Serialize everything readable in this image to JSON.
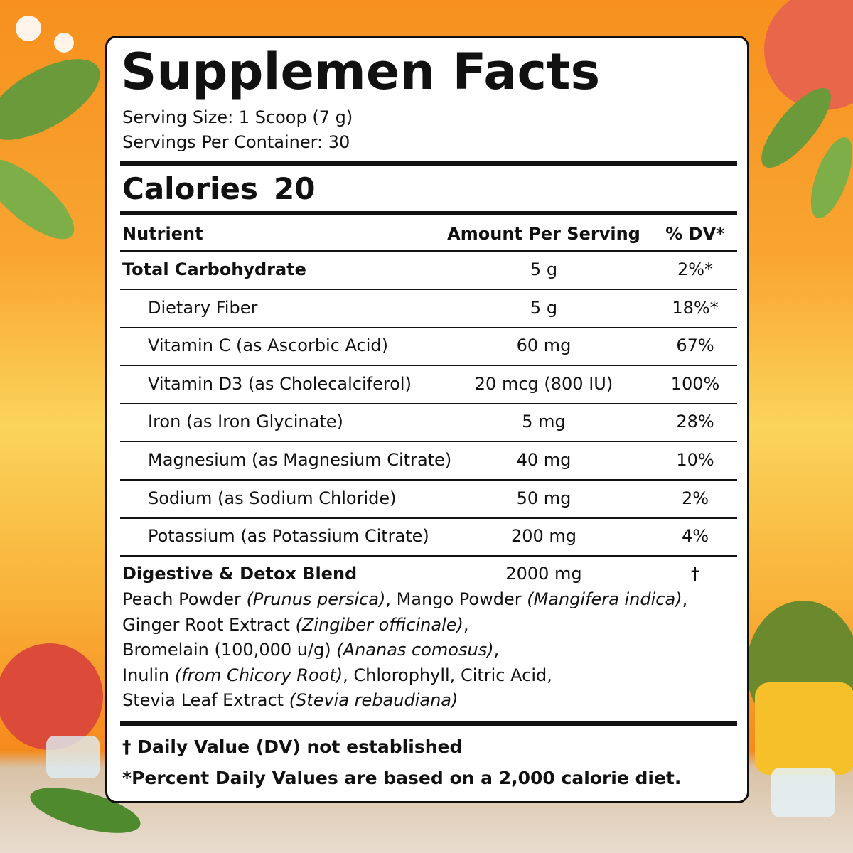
{
  "title": "Supplemen Facts",
  "serving_size": "Serving Size: 1 Scoop (7 g)",
  "servings_per_container": "Servings Per Container: 30",
  "calories": {
    "label": "Calories",
    "value": 20
  },
  "header": {
    "nutrient": "Nutrient",
    "amount": "Amount Per Serving",
    "dv": "% DV*"
  },
  "rows": [
    {
      "name": "Total Carbohydrate",
      "amount": "5 g",
      "dv": "2%*"
    },
    {
      "name": "Dietary Fiber",
      "amount": "5 g",
      "dv": "18%*"
    },
    {
      "name": "Vitamin C (as Ascorbic Acid)",
      "amount": "60 mg",
      "dv": "67%"
    },
    {
      "name": "Vitamin D3 (as Cholecalciferol)",
      "amount": "20 mcg (800 IU)",
      "dv": "100%"
    },
    {
      "name": "Iron (as Iron Glycinate)",
      "amount": "5 mg",
      "dv": "28%"
    },
    {
      "name": "Magnesium (as Magnesium Citrate)",
      "amount": "40 mg",
      "dv": "10%"
    },
    {
      "name": "Sodium (as Sodium Chloride)",
      "amount": "50 mg",
      "dv": "2%"
    },
    {
      "name": "Potassium (as Potassium Citrate)",
      "amount": "200 mg",
      "dv": "4%"
    }
  ],
  "blend": {
    "name": "Digestive & Detox Blend",
    "amount": "2000 mg",
    "dv": "†",
    "ingredients": [
      [
        {
          "text": "Peach Powder ",
          "italic": false
        },
        {
          "text": "(Prunus persica)",
          "italic": true
        },
        {
          "text": ", Mango Powder ",
          "italic": false
        },
        {
          "text": "(Mangifera indica)",
          "italic": true
        },
        {
          "text": ",",
          "italic": false
        }
      ],
      [
        {
          "text": "Ginger Root Extract ",
          "italic": false
        },
        {
          "text": "(Zingiber officinale)",
          "italic": true
        },
        {
          "text": ",",
          "italic": false
        }
      ],
      [
        {
          "text": "Bromelain (100,000 u/g) ",
          "italic": false
        },
        {
          "text": "(Ananas comosus)",
          "italic": true
        },
        {
          "text": ",",
          "italic": false
        }
      ],
      [
        {
          "text": "Inulin ",
          "italic": false
        },
        {
          "text": "(from Chicory Root)",
          "italic": true
        },
        {
          "text": ", Chlorophyll, Citric Acid,",
          "italic": false
        }
      ],
      [
        {
          "text": "Stevia Leaf Extract ",
          "italic": false
        },
        {
          "text": "(Stevia rebaudiana)",
          "italic": true
        }
      ]
    ]
  },
  "footnotes": [
    "† Daily Value (DV) not established",
    "*Percent Daily Values are based on a 2,000 calorie diet."
  ]
}
